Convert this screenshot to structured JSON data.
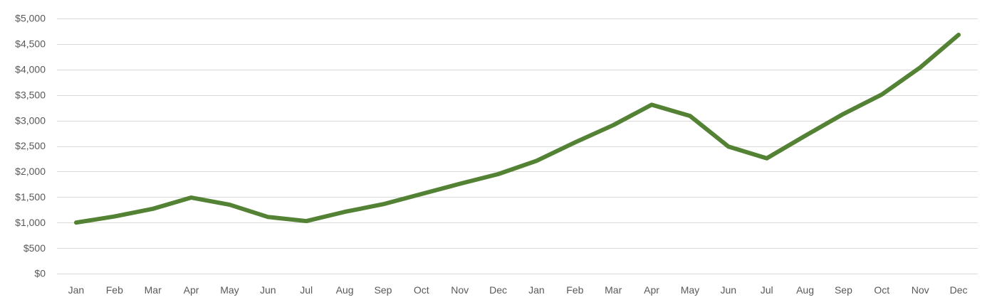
{
  "chart_data": {
    "type": "line",
    "title": "",
    "xlabel": "",
    "ylabel": "",
    "categories": [
      "Jan",
      "Feb",
      "Mar",
      "Apr",
      "May",
      "Jun",
      "Jul",
      "Aug",
      "Sep",
      "Oct",
      "Nov",
      "Dec",
      "Jan",
      "Feb",
      "Mar",
      "Apr",
      "May",
      "Jun",
      "Jul",
      "Aug",
      "Sep",
      "Oct",
      "Nov",
      "Dec"
    ],
    "ylim": [
      0,
      5000
    ],
    "y_ticks": [
      0,
      500,
      1000,
      1500,
      2000,
      2500,
      3000,
      3500,
      4000,
      4500,
      5000
    ],
    "y_tick_labels": [
      "$0",
      "$500",
      "$1,000",
      "$1,500",
      "$2,000",
      "$2,500",
      "$3,000",
      "$3,500",
      "$4,000",
      "$4,500",
      "$5,000"
    ],
    "grid": true,
    "legend": "none",
    "series": [
      {
        "color": "#548235",
        "values": [
          1000,
          1120,
          1270,
          1490,
          1350,
          1110,
          1030,
          1210,
          1360,
          1560,
          1760,
          1950,
          2210,
          2570,
          2910,
          3310,
          3090,
          2490,
          2260,
          2700,
          3130,
          3510,
          4040,
          4680
        ]
      }
    ]
  }
}
